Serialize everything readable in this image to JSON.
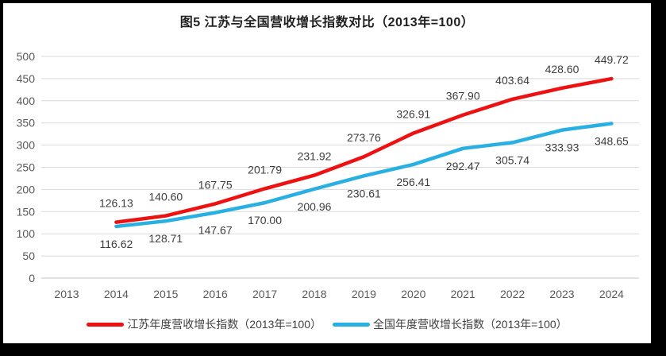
{
  "title": "图5  江苏与全国营收增长指数对比（2013年=100）",
  "chart_data": {
    "type": "line",
    "title": "图5  江苏与全国营收增长指数对比（2013年=100）",
    "categories": [
      "2013",
      "2014",
      "2015",
      "2016",
      "2017",
      "2018",
      "2019",
      "2020",
      "2021",
      "2022",
      "2023",
      "2024"
    ],
    "series": [
      {
        "name": "江苏年度营收增长指数（2013年=100）",
        "color": "#ee1111",
        "label_position": "above",
        "values": [
          null,
          126.13,
          140.6,
          167.75,
          201.79,
          231.92,
          273.76,
          326.91,
          367.9,
          403.64,
          428.6,
          449.72
        ]
      },
      {
        "name": "全国年度营收增长指数（2013年=100）",
        "color": "#29b0e2",
        "label_position": "below",
        "values": [
          null,
          116.62,
          128.71,
          147.67,
          170.0,
          200.96,
          230.61,
          256.41,
          292.47,
          305.74,
          333.93,
          348.65
        ]
      }
    ],
    "xlabel": "",
    "ylabel": "",
    "ylim": [
      0,
      500
    ],
    "yticks": [
      0,
      50,
      100,
      150,
      200,
      250,
      300,
      350,
      400,
      450,
      500
    ],
    "grid": "horizontal",
    "grid_color": "#d9d9d9",
    "axis_line_color": "#c3c3c3",
    "tick_label_color": "#595959",
    "data_label_color": "#3d3d3d",
    "legend_position": "bottom",
    "data_labels": true
  }
}
